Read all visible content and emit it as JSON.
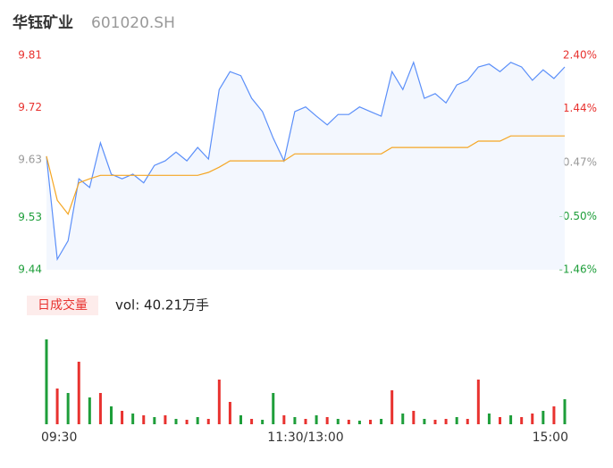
{
  "header": {
    "name": "华钰矿业",
    "code": "601020.SH"
  },
  "chart_data": [
    {
      "type": "line",
      "x": [
        0,
        5,
        10,
        15,
        20,
        25,
        30,
        35,
        40,
        45,
        50,
        55,
        60,
        65,
        70,
        75,
        80,
        85,
        90,
        95,
        100,
        105,
        110,
        115,
        120,
        125,
        130,
        135,
        140,
        145,
        150,
        155,
        160,
        165,
        170,
        175,
        180,
        185,
        190,
        195,
        200,
        205,
        210,
        215,
        220,
        225,
        230,
        235,
        240
      ],
      "xlim": [
        0,
        240
      ],
      "ylim": [
        9.44,
        9.81
      ],
      "yticks": [
        9.81,
        9.72,
        9.63,
        9.53,
        9.44
      ],
      "yticks_colors": [
        "#e8322f",
        "#e8322f",
        "#999999",
        "#1e9e3a",
        "#1e9e3a"
      ],
      "y2lim": [
        -1.46,
        2.4
      ],
      "y2ticks": [
        {
          "value": 2.4,
          "label": "2.40%"
        },
        {
          "value": 1.44,
          "label": "1.44%"
        },
        {
          "value": 0.47,
          "label": "0.47%"
        },
        {
          "value": -0.5,
          "label": "-0.50%"
        },
        {
          "value": -1.46,
          "label": "-1.46%"
        }
      ],
      "y2ticks_colors": [
        "#e8322f",
        "#e8322f",
        "#999999",
        "#1e9e3a",
        "#1e9e3a"
      ],
      "series": [
        {
          "name": "price",
          "color": "#5b8ff9",
          "values": [
            9.636,
            9.458,
            9.49,
            9.597,
            9.582,
            9.659,
            9.605,
            9.597,
            9.605,
            9.59,
            9.62,
            9.628,
            9.643,
            9.628,
            9.651,
            9.631,
            9.751,
            9.782,
            9.775,
            9.736,
            9.713,
            9.667,
            9.628,
            9.713,
            9.721,
            9.705,
            9.69,
            9.708,
            9.708,
            9.721,
            9.713,
            9.705,
            9.782,
            9.751,
            9.798,
            9.736,
            9.744,
            9.728,
            9.759,
            9.767,
            9.79,
            9.795,
            9.782,
            9.798,
            9.79,
            9.767,
            9.785,
            9.77,
            9.79
          ]
        },
        {
          "name": "average",
          "color": "#f5a623",
          "values": [
            9.636,
            9.56,
            9.536,
            9.59,
            9.597,
            9.603,
            9.603,
            9.603,
            9.603,
            9.603,
            9.603,
            9.603,
            9.603,
            9.603,
            9.603,
            9.608,
            9.617,
            9.628,
            9.628,
            9.628,
            9.628,
            9.628,
            9.628,
            9.64,
            9.64,
            9.64,
            9.64,
            9.64,
            9.64,
            9.64,
            9.64,
            9.64,
            9.651,
            9.651,
            9.651,
            9.651,
            9.651,
            9.651,
            9.651,
            9.651,
            9.662,
            9.662,
            9.662,
            9.671,
            9.671,
            9.671,
            9.671,
            9.671,
            9.671
          ]
        }
      ]
    },
    {
      "type": "volume",
      "label": "日成交量",
      "total": "vol: 40.21万手",
      "xlim": [
        0,
        240
      ],
      "xticks": [
        {
          "value": 0,
          "label": "09:30"
        },
        {
          "value": 120,
          "label": "11:30/13:00"
        },
        {
          "value": 240,
          "label": "15:00"
        }
      ],
      "x": [
        0,
        5,
        10,
        15,
        20,
        25,
        30,
        35,
        40,
        45,
        50,
        55,
        60,
        65,
        70,
        75,
        80,
        85,
        90,
        95,
        100,
        105,
        110,
        115,
        120,
        125,
        130,
        135,
        140,
        145,
        150,
        155,
        160,
        165,
        170,
        175,
        180,
        185,
        190,
        195,
        200,
        205,
        210,
        215,
        220,
        225,
        230,
        235,
        240
      ],
      "ylim": [
        0,
        1
      ],
      "values": [
        0.95,
        0.4,
        0.35,
        0.7,
        0.3,
        0.35,
        0.2,
        0.15,
        0.12,
        0.1,
        0.08,
        0.1,
        0.06,
        0.05,
        0.08,
        0.06,
        0.5,
        0.25,
        0.1,
        0.06,
        0.05,
        0.35,
        0.1,
        0.08,
        0.06,
        0.1,
        0.08,
        0.06,
        0.05,
        0.04,
        0.05,
        0.06,
        0.38,
        0.12,
        0.15,
        0.06,
        0.05,
        0.06,
        0.08,
        0.06,
        0.5,
        0.12,
        0.08,
        0.1,
        0.08,
        0.12,
        0.15,
        0.2,
        0.28
      ],
      "colors": [
        "#1e9e3a",
        "#e8322f",
        "#1e9e3a",
        "#e8322f",
        "#1e9e3a",
        "#e8322f",
        "#1e9e3a",
        "#e8322f",
        "#1e9e3a",
        "#e8322f",
        "#1e9e3a",
        "#e8322f",
        "#1e9e3a",
        "#e8322f",
        "#1e9e3a",
        "#e8322f",
        "#e8322f",
        "#e8322f",
        "#1e9e3a",
        "#e8322f",
        "#1e9e3a",
        "#1e9e3a",
        "#e8322f",
        "#1e9e3a",
        "#e8322f",
        "#1e9e3a",
        "#e8322f",
        "#1e9e3a",
        "#e8322f",
        "#1e9e3a",
        "#e8322f",
        "#1e9e3a",
        "#e8322f",
        "#1e9e3a",
        "#e8322f",
        "#1e9e3a",
        "#e8322f",
        "#e8322f",
        "#1e9e3a",
        "#e8322f",
        "#e8322f",
        "#1e9e3a",
        "#e8322f",
        "#1e9e3a",
        "#e8322f",
        "#e8322f",
        "#1e9e3a",
        "#e8322f",
        "#1e9e3a"
      ]
    }
  ]
}
